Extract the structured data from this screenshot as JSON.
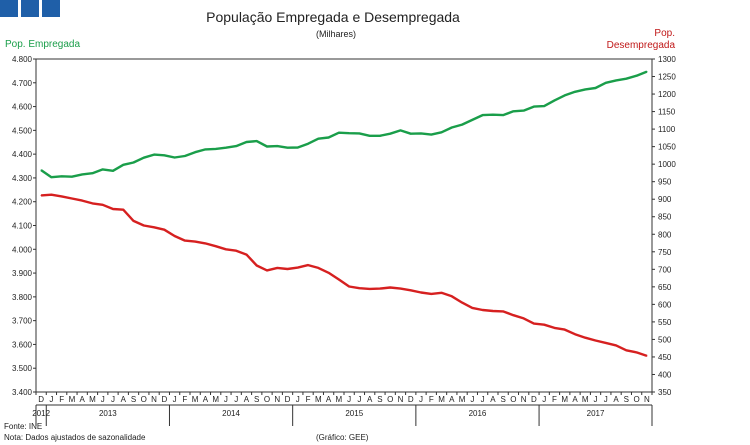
{
  "chart_data": {
    "type": "line",
    "title": "População Empregada e Desempregada",
    "subtitle": "(Milhares)",
    "left_axis_label": "Pop. Empregada",
    "right_axis_label_line1": "Pop.",
    "right_axis_label_line2": "Desempregada",
    "left_ylim": [
      3400,
      4800
    ],
    "right_ylim": [
      350,
      1300
    ],
    "left_ticks": [
      {
        "v": 3400,
        "label": "3.400"
      },
      {
        "v": 3500,
        "label": "3.500"
      },
      {
        "v": 3600,
        "label": "3.600"
      },
      {
        "v": 3700,
        "label": "3.700"
      },
      {
        "v": 3800,
        "label": "3.800"
      },
      {
        "v": 3900,
        "label": "3.900"
      },
      {
        "v": 4000,
        "label": "4.000"
      },
      {
        "v": 4100,
        "label": "4.100"
      },
      {
        "v": 4200,
        "label": "4.200"
      },
      {
        "v": 4300,
        "label": "4.300"
      },
      {
        "v": 4400,
        "label": "4.400"
      },
      {
        "v": 4500,
        "label": "4.500"
      },
      {
        "v": 4600,
        "label": "4.600"
      },
      {
        "v": 4700,
        "label": "4.700"
      },
      {
        "v": 4800,
        "label": "4.800"
      }
    ],
    "right_ticks": [
      {
        "v": 350,
        "label": "350"
      },
      {
        "v": 400,
        "label": "400"
      },
      {
        "v": 450,
        "label": "450"
      },
      {
        "v": 500,
        "label": "500"
      },
      {
        "v": 550,
        "label": "550"
      },
      {
        "v": 600,
        "label": "600"
      },
      {
        "v": 650,
        "label": "650"
      },
      {
        "v": 700,
        "label": "700"
      },
      {
        "v": 750,
        "label": "750"
      },
      {
        "v": 800,
        "label": "800"
      },
      {
        "v": 850,
        "label": "850"
      },
      {
        "v": 900,
        "label": "900"
      },
      {
        "v": 950,
        "label": "950"
      },
      {
        "v": 1000,
        "label": "1000"
      },
      {
        "v": 1050,
        "label": "1050"
      },
      {
        "v": 1100,
        "label": "1100"
      },
      {
        "v": 1150,
        "label": "1150"
      },
      {
        "v": 1200,
        "label": "1200"
      },
      {
        "v": 1250,
        "label": "1250"
      },
      {
        "v": 1300,
        "label": "1300"
      }
    ],
    "months": [
      "D",
      "J",
      "F",
      "M",
      "A",
      "M",
      "J",
      "J",
      "A",
      "S",
      "O",
      "N",
      "D",
      "J",
      "F",
      "M",
      "A",
      "M",
      "J",
      "J",
      "A",
      "S",
      "O",
      "N",
      "D",
      "J",
      "F",
      "M",
      "A",
      "M",
      "J",
      "J",
      "A",
      "S",
      "O",
      "N",
      "D",
      "J",
      "F",
      "M",
      "A",
      "M",
      "J",
      "J",
      "A",
      "S",
      "O",
      "N",
      "D",
      "J",
      "F",
      "M",
      "A",
      "M",
      "J",
      "J",
      "A",
      "S",
      "O",
      "N"
    ],
    "years": [
      {
        "label": "2012",
        "start": 0,
        "end": 0
      },
      {
        "label": "2013",
        "start": 1,
        "end": 12
      },
      {
        "label": "2014",
        "start": 13,
        "end": 24
      },
      {
        "label": "2015",
        "start": 25,
        "end": 36
      },
      {
        "label": "2016",
        "start": 37,
        "end": 48
      },
      {
        "label": "2017",
        "start": 49,
        "end": 59
      }
    ],
    "series": [
      {
        "name": "Pop. Empregada",
        "axis": "left",
        "color": "#1a9e4a",
        "values": [
          4333,
          4303,
          4307,
          4305,
          4315,
          4320,
          4336,
          4330,
          4355,
          4365,
          4385,
          4398,
          4395,
          4386,
          4392,
          4408,
          4420,
          4422,
          4427,
          4434,
          4451,
          4455,
          4432,
          4434,
          4427,
          4428,
          4444,
          4465,
          4470,
          4490,
          4488,
          4487,
          4477,
          4477,
          4486,
          4500,
          4486,
          4487,
          4482,
          4492,
          4512,
          4524,
          4544,
          4564,
          4566,
          4564,
          4580,
          4583,
          4600,
          4602,
          4626,
          4647,
          4662,
          4672,
          4678,
          4700,
          4710,
          4717,
          4730,
          4747
        ]
      },
      {
        "name": "Pop. Desempregada",
        "axis": "right",
        "color": "#d62020",
        "values": [
          911,
          913,
          908,
          902,
          896,
          888,
          884,
          872,
          870,
          838,
          825,
          820,
          813,
          795,
          782,
          779,
          774,
          766,
          757,
          753,
          742,
          711,
          697,
          704,
          701,
          705,
          712,
          704,
          690,
          671,
          651,
          646,
          644,
          645,
          648,
          645,
          640,
          634,
          630,
          633,
          623,
          605,
          590,
          584,
          581,
          580,
          569,
          560,
          545,
          542,
          533,
          528,
          515,
          505,
          497,
          490,
          483,
          469,
          463,
          453
        ]
      }
    ],
    "footnote_source": "Fonte: INE",
    "footnote_note": "Nota: Dados ajustados de sazonalidade",
    "footnote_graphic": "(Gráfico: GEE)"
  }
}
